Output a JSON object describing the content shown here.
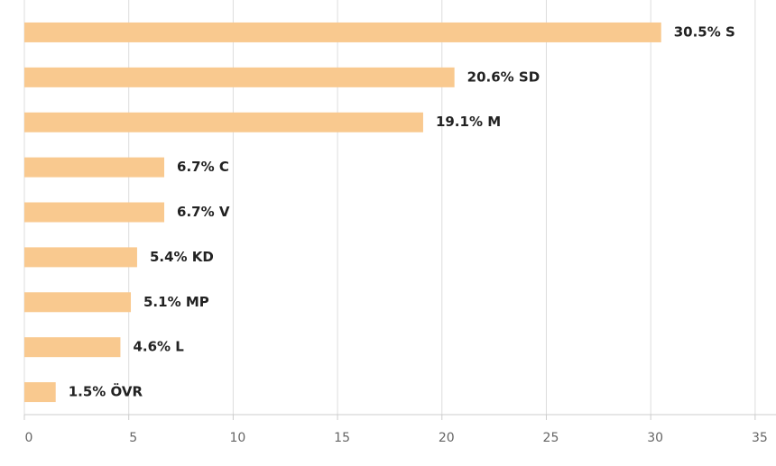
{
  "chart_data": {
    "type": "barh",
    "values": [
      30.5,
      20.6,
      19.1,
      6.7,
      6.7,
      5.4,
      5.1,
      4.6,
      1.5
    ],
    "value_labels": [
      "30.5% S",
      "20.6% SD",
      "19.1% M",
      "6.7% C",
      "6.7% V",
      "5.4% KD",
      "5.1% MP",
      "4.6% L",
      "1.5% ÖVR"
    ],
    "color": "#f9c98f",
    "xlim": [
      0,
      36
    ],
    "xticks": [
      0,
      5,
      10,
      15,
      20,
      25,
      30,
      35
    ],
    "grid": true
  }
}
